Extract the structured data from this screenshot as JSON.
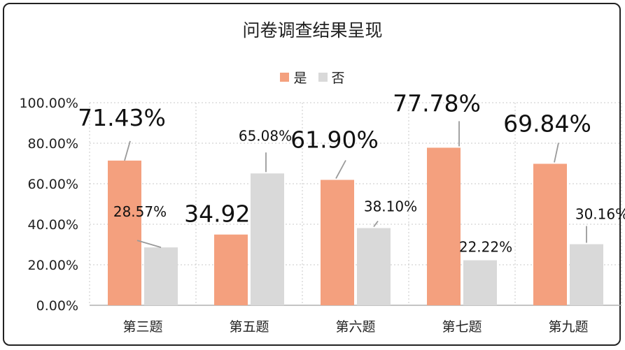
{
  "chart_data": {
    "type": "bar",
    "title": "问卷调查结果呈现",
    "categories": [
      "第三题",
      "第五题",
      "第六题",
      "第七题",
      "第九题"
    ],
    "series": [
      {
        "name": "是",
        "color": "#F4A07E",
        "values": [
          71.43,
          34.92,
          61.9,
          77.78,
          69.84
        ],
        "labels": [
          "71.43%",
          "34.92%",
          "61.90%",
          "77.78%",
          "69.84%"
        ]
      },
      {
        "name": "否",
        "color": "#D9D9D9",
        "values": [
          28.57,
          65.08,
          38.1,
          22.22,
          30.16
        ],
        "labels": [
          "28.57%",
          "65.08%",
          "38.10%",
          "22.22%",
          "30.16%"
        ]
      }
    ],
    "y_ticks": [
      "0.00%",
      "20.00%",
      "40.00%",
      "60.00%",
      "80.00%",
      "100.00%"
    ],
    "ylim": [
      0,
      100
    ],
    "grid": true,
    "legend_position": "top"
  }
}
